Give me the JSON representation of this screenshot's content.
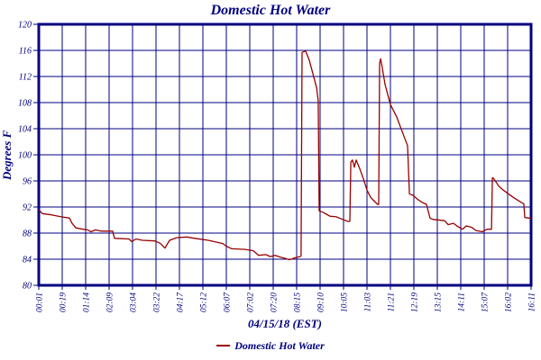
{
  "chart_data": {
    "type": "line",
    "title": "Domestic Hot Water",
    "ylabel": "Degrees F",
    "xlabel": "04/15/18 (EST)",
    "legend": "Domestic Hot Water",
    "legend_position": "bottom",
    "grid": true,
    "ylim": [
      80,
      120
    ],
    "ytick_step": 4,
    "x_tick_labels": [
      "00:01",
      "00:19",
      "01:14",
      "02:09",
      "03:04",
      "03:22",
      "04:17",
      "05:12",
      "06:07",
      "07:02",
      "07:20",
      "08:15",
      "09:10",
      "10:05",
      "11:03",
      "11:21",
      "12:19",
      "13:15",
      "14:11",
      "15:07",
      "16:02",
      "16:11"
    ],
    "colors": {
      "axis": "#000080",
      "grid": "#000080",
      "text": "#000080",
      "background": "#ffffff",
      "series": "#990000"
    },
    "series": [
      {
        "name": "Domestic Hot Water",
        "color": "#990000",
        "x_units": "tick-index (0 = 00:01 ... 21 = 16:11)",
        "y_units": "Degrees F",
        "points": [
          [
            0.0,
            91.6
          ],
          [
            0.15,
            91.0
          ],
          [
            0.54,
            90.8
          ],
          [
            0.96,
            90.5
          ],
          [
            1.31,
            90.3
          ],
          [
            1.42,
            89.5
          ],
          [
            1.58,
            88.8
          ],
          [
            1.88,
            88.6
          ],
          [
            2.08,
            88.5
          ],
          [
            2.23,
            88.2
          ],
          [
            2.42,
            88.5
          ],
          [
            2.65,
            88.3
          ],
          [
            3.15,
            88.3
          ],
          [
            3.23,
            87.2
          ],
          [
            3.85,
            87.1
          ],
          [
            3.96,
            86.7
          ],
          [
            4.15,
            87.1
          ],
          [
            4.42,
            86.9
          ],
          [
            4.96,
            86.8
          ],
          [
            5.19,
            86.4
          ],
          [
            5.38,
            85.7
          ],
          [
            5.58,
            86.9
          ],
          [
            5.88,
            87.3
          ],
          [
            6.31,
            87.4
          ],
          [
            6.65,
            87.2
          ],
          [
            7.23,
            86.9
          ],
          [
            7.85,
            86.4
          ],
          [
            8.0,
            86.0
          ],
          [
            8.23,
            85.6
          ],
          [
            8.81,
            85.5
          ],
          [
            9.15,
            85.3
          ],
          [
            9.38,
            84.6
          ],
          [
            9.69,
            84.7
          ],
          [
            9.88,
            84.4
          ],
          [
            10.08,
            84.6
          ],
          [
            10.31,
            84.3
          ],
          [
            10.54,
            84.1
          ],
          [
            10.69,
            83.9
          ],
          [
            10.92,
            84.2
          ],
          [
            11.15,
            84.4
          ],
          [
            11.19,
            84.5
          ],
          [
            11.23,
            115.7
          ],
          [
            11.38,
            115.9
          ],
          [
            11.46,
            115.2
          ],
          [
            11.54,
            114.5
          ],
          [
            11.69,
            112.5
          ],
          [
            11.85,
            110.3
          ],
          [
            11.92,
            108.3
          ],
          [
            11.96,
            91.4
          ],
          [
            12.12,
            91.2
          ],
          [
            12.27,
            90.9
          ],
          [
            12.42,
            90.6
          ],
          [
            12.69,
            90.5
          ],
          [
            12.96,
            90.1
          ],
          [
            13.19,
            89.8
          ],
          [
            13.27,
            89.8
          ],
          [
            13.31,
            98.9
          ],
          [
            13.38,
            99.2
          ],
          [
            13.46,
            98.1
          ],
          [
            13.54,
            99.2
          ],
          [
            13.62,
            98.5
          ],
          [
            13.69,
            97.9
          ],
          [
            13.85,
            96.3
          ],
          [
            14.0,
            94.6
          ],
          [
            14.15,
            93.5
          ],
          [
            14.31,
            92.9
          ],
          [
            14.46,
            92.4
          ],
          [
            14.5,
            92.4
          ],
          [
            14.54,
            114.0
          ],
          [
            14.58,
            114.7
          ],
          [
            14.65,
            113.4
          ],
          [
            14.77,
            110.8
          ],
          [
            15.0,
            107.7
          ],
          [
            15.27,
            105.8
          ],
          [
            15.58,
            102.8
          ],
          [
            15.73,
            101.4
          ],
          [
            15.81,
            94.0
          ],
          [
            15.96,
            93.8
          ],
          [
            16.15,
            93.2
          ],
          [
            16.35,
            92.7
          ],
          [
            16.54,
            92.4
          ],
          [
            16.69,
            90.3
          ],
          [
            16.81,
            90.1
          ],
          [
            17.31,
            89.9
          ],
          [
            17.46,
            89.3
          ],
          [
            17.69,
            89.5
          ],
          [
            17.88,
            89.0
          ],
          [
            18.08,
            88.6
          ],
          [
            18.23,
            89.1
          ],
          [
            18.46,
            88.9
          ],
          [
            18.65,
            88.4
          ],
          [
            18.92,
            88.2
          ],
          [
            19.12,
            88.6
          ],
          [
            19.31,
            88.6
          ],
          [
            19.35,
            96.5
          ],
          [
            19.42,
            96.3
          ],
          [
            19.62,
            95.2
          ],
          [
            19.81,
            94.6
          ],
          [
            20.0,
            94.1
          ],
          [
            20.27,
            93.4
          ],
          [
            20.54,
            92.8
          ],
          [
            20.69,
            92.5
          ],
          [
            20.73,
            90.4
          ],
          [
            20.88,
            90.3
          ],
          [
            21.0,
            90.3
          ]
        ]
      }
    ]
  }
}
